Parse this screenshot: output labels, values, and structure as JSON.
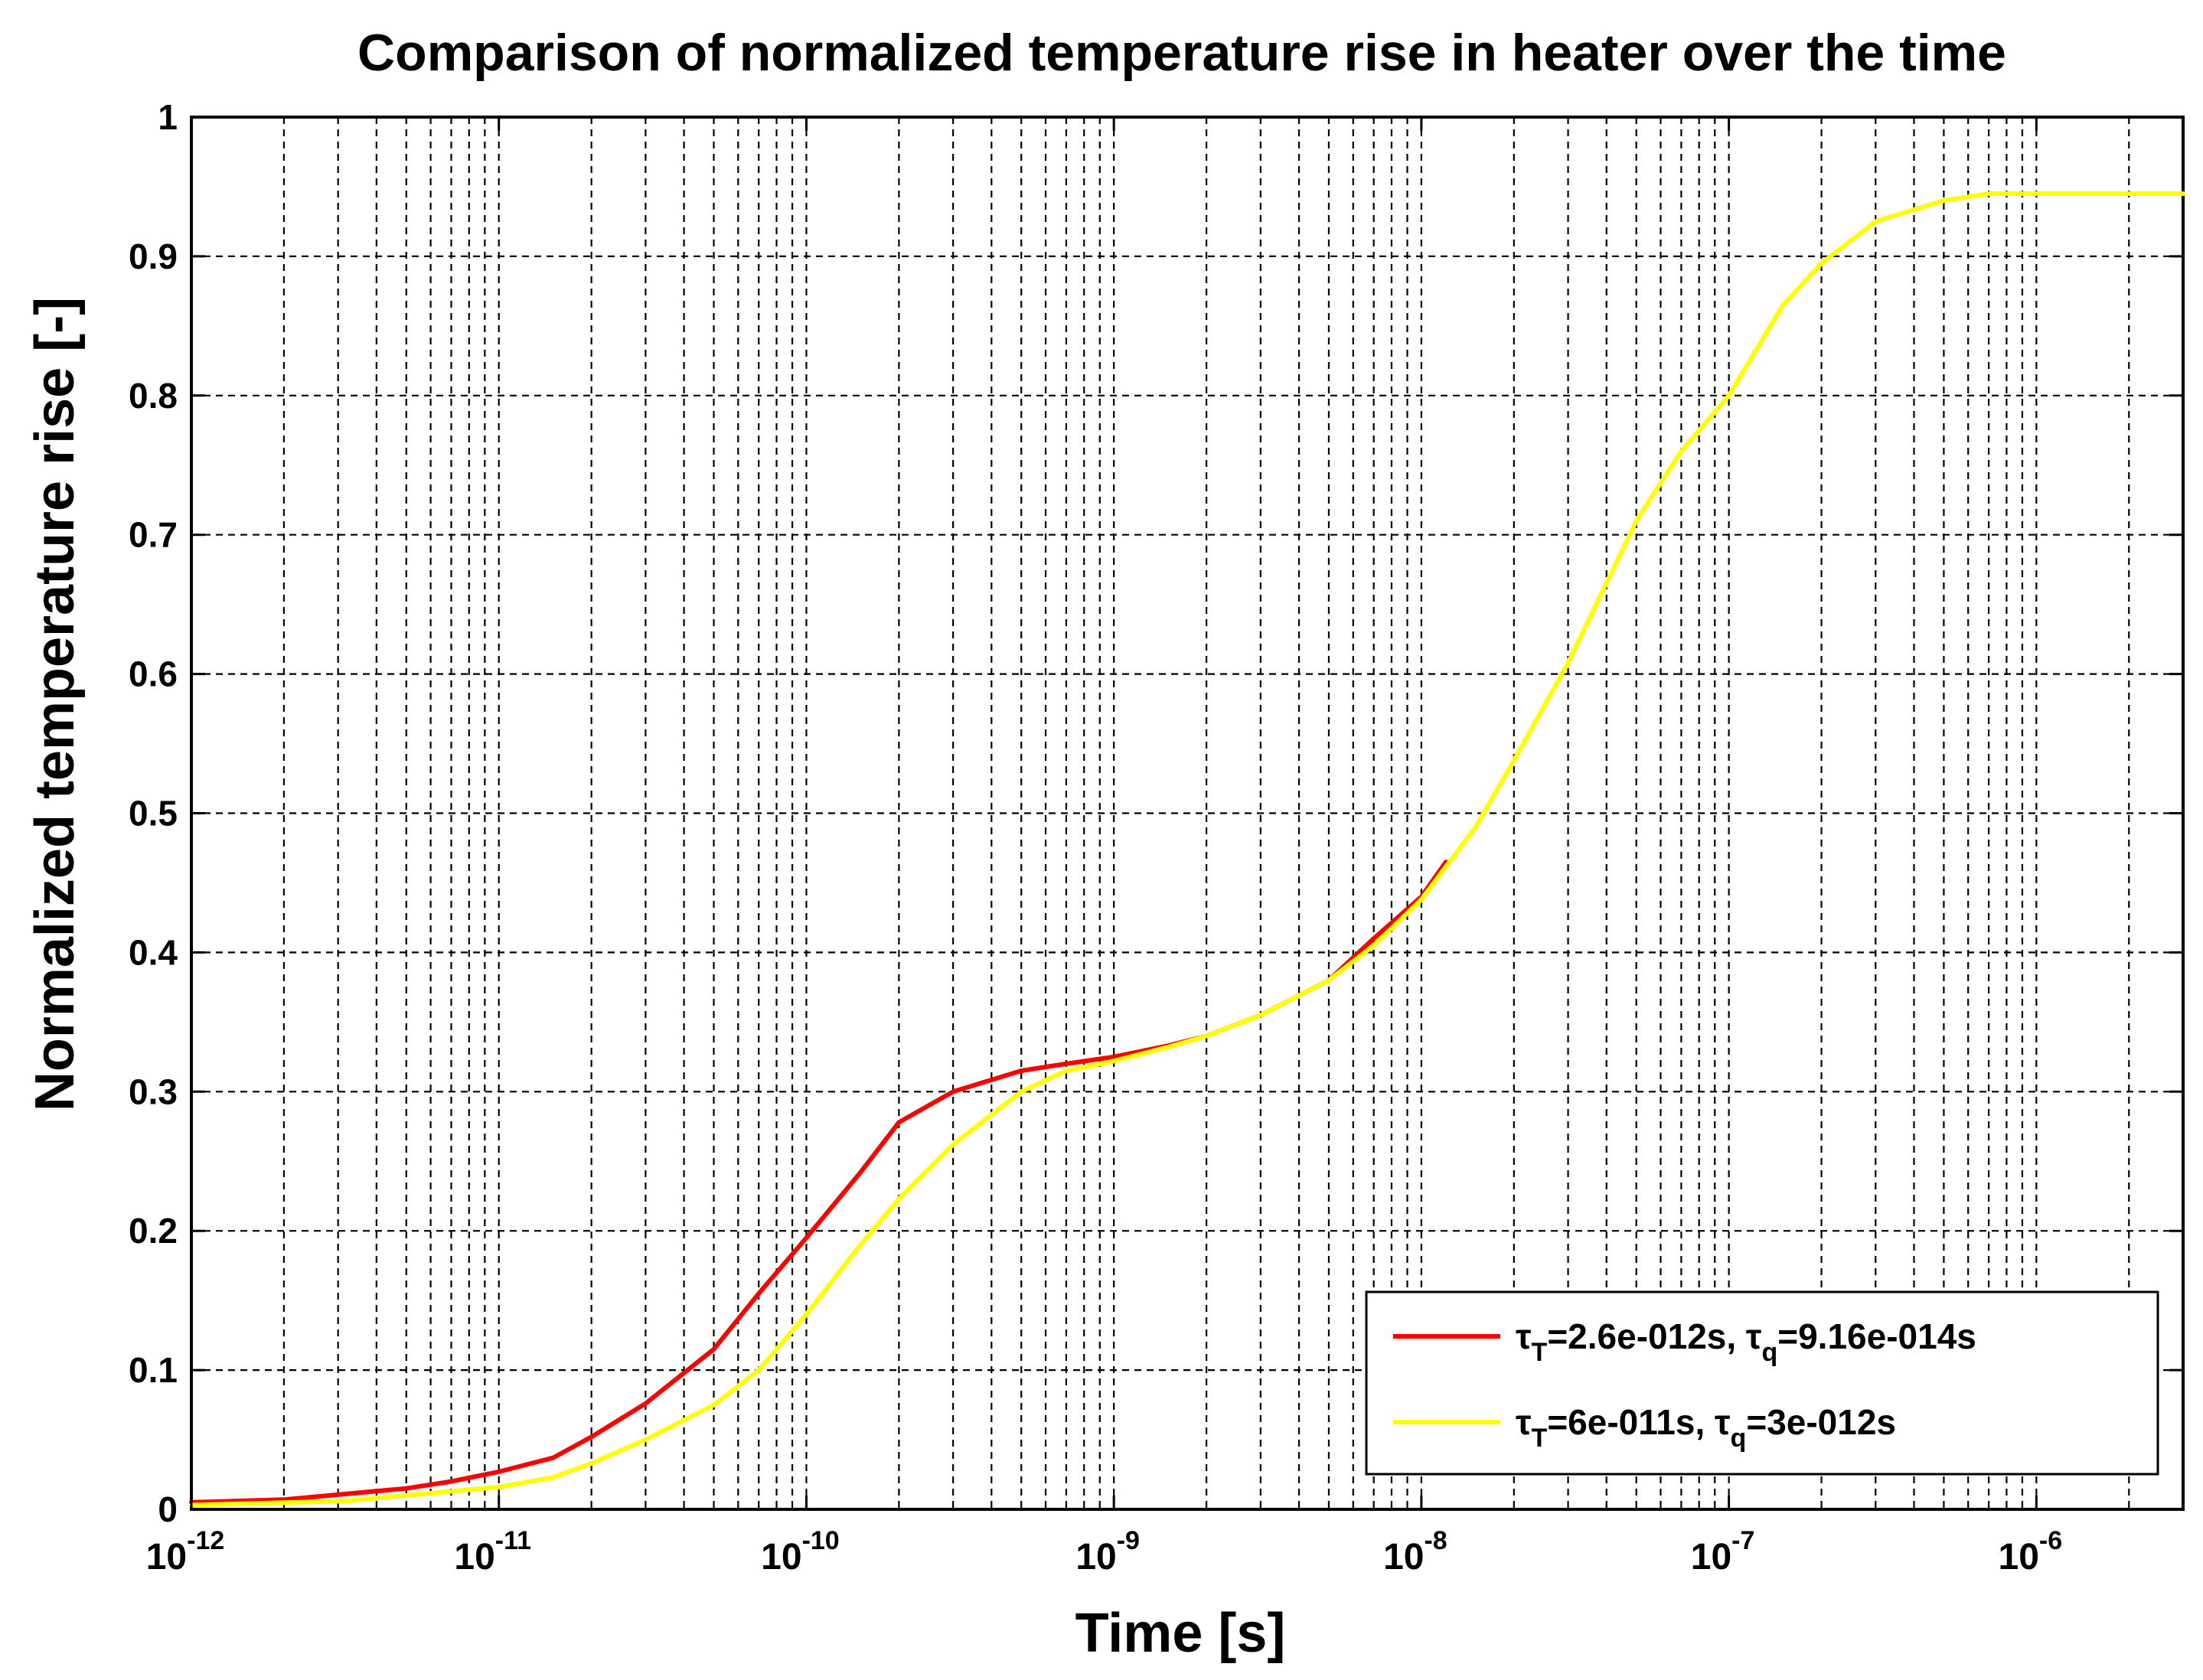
{
  "chart_data": {
    "type": "line",
    "title": "Comparison of normalized temperature rise in heater over the time",
    "xlabel": "Time [s]",
    "ylabel": "Normalized temperature rise [-]",
    "xscale": "log",
    "xlim": [
      1e-12,
      3e-06
    ],
    "ylim": [
      0,
      1
    ],
    "grid": true,
    "grid_style": "dashed",
    "x_ticks": [
      {
        "value": 1e-12,
        "base": "10",
        "exp": "-12"
      },
      {
        "value": 1e-11,
        "base": "10",
        "exp": "-11"
      },
      {
        "value": 1e-10,
        "base": "10",
        "exp": "-10"
      },
      {
        "value": 1e-09,
        "base": "10",
        "exp": "-9"
      },
      {
        "value": 1e-08,
        "base": "10",
        "exp": "-8"
      },
      {
        "value": 1e-07,
        "base": "10",
        "exp": "-7"
      },
      {
        "value": 1e-06,
        "base": "10",
        "exp": "-6"
      }
    ],
    "y_ticks": [
      "0",
      "0.1",
      "0.2",
      "0.3",
      "0.4",
      "0.5",
      "0.6",
      "0.7",
      "0.8",
      "0.9",
      "1"
    ],
    "legend_position": "bottom-right",
    "series": [
      {
        "name": "τT=2.6e-012s, τq=9.16e-014s",
        "legend_tau1_sub": "T",
        "legend_value1": "=2.6e-012s, ",
        "legend_tau2_sub": "q",
        "legend_value2": "=9.16e-014s",
        "color": "#ff0000",
        "points": [
          [
            -12,
            0.005
          ],
          [
            -11.699,
            0.007
          ],
          [
            -11.5,
            0.011
          ],
          [
            -11.301,
            0.015
          ],
          [
            -11.155,
            0.02
          ],
          [
            -11,
            0.027
          ],
          [
            -10.824,
            0.037
          ],
          [
            -10.699,
            0.052
          ],
          [
            -10.523,
            0.076
          ],
          [
            -10.301,
            0.115
          ],
          [
            -10.155,
            0.155
          ],
          [
            -10,
            0.195
          ],
          [
            -9.824,
            0.242
          ],
          [
            -9.699,
            0.278
          ],
          [
            -9.523,
            0.3
          ],
          [
            -9.301,
            0.315
          ],
          [
            -9.155,
            0.32
          ],
          [
            -9,
            0.325
          ],
          [
            -8.824,
            0.333
          ],
          [
            -8.699,
            0.34
          ],
          [
            -8.523,
            0.355
          ],
          [
            -8.301,
            0.38
          ],
          [
            -8.155,
            0.41
          ],
          [
            -8,
            0.44
          ],
          [
            -7.92,
            0.465
          ]
        ]
      },
      {
        "name": "τT=6e-011s, τq=3e-012s",
        "legend_tau1_sub": "T",
        "legend_value1": "=6e-011s, ",
        "legend_tau2_sub": "q",
        "legend_value2": "=3e-012s",
        "color": "#ffff00",
        "points": [
          [
            -12,
            0.003
          ],
          [
            -11.5,
            0.006
          ],
          [
            -11.301,
            0.01
          ],
          [
            -11,
            0.016
          ],
          [
            -10.824,
            0.023
          ],
          [
            -10.699,
            0.033
          ],
          [
            -10.523,
            0.05
          ],
          [
            -10.301,
            0.075
          ],
          [
            -10.155,
            0.1
          ],
          [
            -10,
            0.14
          ],
          [
            -9.824,
            0.19
          ],
          [
            -9.699,
            0.223
          ],
          [
            -9.523,
            0.262
          ],
          [
            -9.301,
            0.3
          ],
          [
            -9.155,
            0.315
          ],
          [
            -9,
            0.322
          ],
          [
            -8.824,
            0.332
          ],
          [
            -8.699,
            0.34
          ],
          [
            -8.523,
            0.355
          ],
          [
            -8.301,
            0.38
          ],
          [
            -8.155,
            0.405
          ],
          [
            -8,
            0.438
          ],
          [
            -7.824,
            0.49
          ],
          [
            -7.699,
            0.538
          ],
          [
            -7.523,
            0.608
          ],
          [
            -7.301,
            0.71
          ],
          [
            -7.155,
            0.76
          ],
          [
            -7,
            0.8
          ],
          [
            -6.824,
            0.865
          ],
          [
            -6.699,
            0.895
          ],
          [
            -6.523,
            0.925
          ],
          [
            -6.301,
            0.94
          ],
          [
            -6.155,
            0.945
          ],
          [
            -6,
            0.945
          ],
          [
            -5.523,
            0.945
          ]
        ]
      }
    ]
  }
}
